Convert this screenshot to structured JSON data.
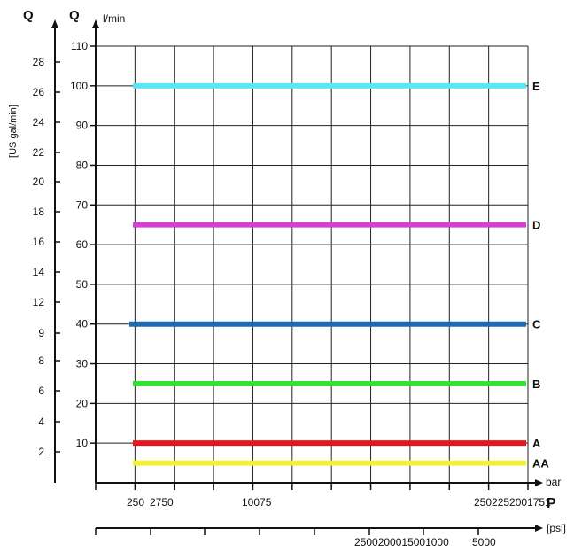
{
  "chart_data": {
    "type": "line",
    "q_symbol_left": "Q",
    "q_symbol_right": "Q",
    "y_unit": "l/min",
    "y_label_secondary": "[US gal/min]",
    "y_ticks": [
      10,
      20,
      30,
      40,
      50,
      60,
      70,
      80,
      90,
      100,
      110
    ],
    "y_ticks_secondary": [
      2,
      4,
      6,
      8,
      9,
      12,
      14,
      16,
      18,
      20,
      22,
      24,
      26,
      28
    ],
    "ylim": [
      0,
      110
    ],
    "x_unit": "bar",
    "x_symbol": "P",
    "x_unit_secondary": "[psi]",
    "x_tick_labels": [
      "250",
      "2750",
      "10075",
      "2502252001751"
    ],
    "x_tick_labels_secondary": [
      "2500200015001000",
      "5000"
    ],
    "grid": true,
    "series": [
      {
        "name": "E",
        "color": "#5ce6f2",
        "flow": 100
      },
      {
        "name": "D",
        "color": "#d43fd4",
        "flow": 65
      },
      {
        "name": "C",
        "color": "#1e6bb0",
        "flow": 40
      },
      {
        "name": "B",
        "color": "#34e034",
        "flow": 25
      },
      {
        "name": "A",
        "color": "#e8161b",
        "flow": 10
      },
      {
        "name": "AA",
        "color": "#f5f035",
        "flow": 5
      }
    ]
  }
}
